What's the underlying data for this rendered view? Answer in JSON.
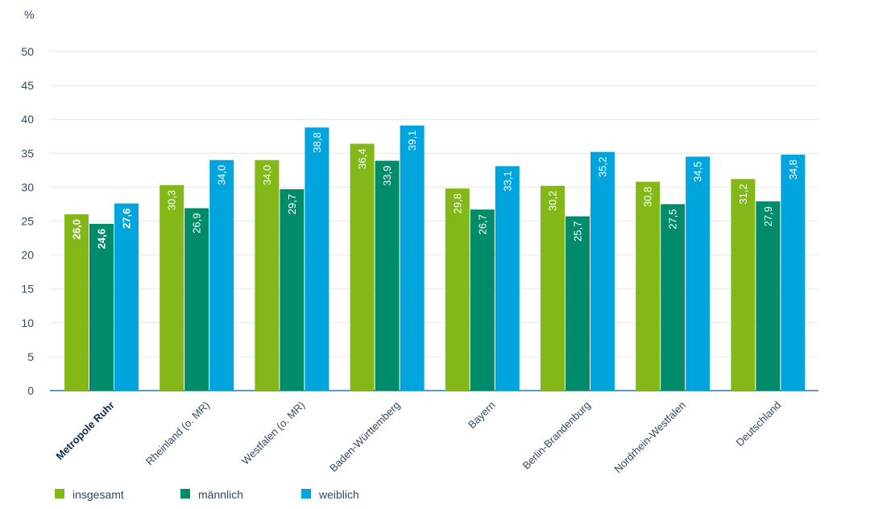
{
  "chart_data": {
    "type": "bar",
    "unit_label": "%",
    "categories": [
      "Metropole Ruhr",
      "Rheinland (o. MR)",
      "Westfalen (o. MR)",
      "Baden-Württemberg",
      "Bayern",
      "Berlin-Brandenburg",
      "Nordrhein-Westfalen",
      "Deutschland"
    ],
    "highlight_category": "Metropole Ruhr",
    "series": [
      {
        "name": "insgesamt",
        "color": "#84b819",
        "values": [
          26.0,
          30.3,
          34.0,
          36.4,
          29.8,
          30.2,
          30.8,
          31.2
        ],
        "labels": [
          "26,0",
          "30,3",
          "34,0",
          "36,4",
          "29,8",
          "30,2",
          "30,8",
          "31,2"
        ]
      },
      {
        "name": "männlich",
        "color": "#008c6a",
        "values": [
          24.6,
          26.9,
          29.7,
          33.9,
          26.7,
          25.7,
          27.5,
          27.9
        ],
        "labels": [
          "24,6",
          "26,9",
          "29,7",
          "33,9",
          "26,7",
          "25,7",
          "27,5",
          "27,9"
        ]
      },
      {
        "name": "weiblich",
        "color": "#00a5dd",
        "values": [
          27.6,
          34.0,
          38.8,
          39.1,
          33.1,
          35.2,
          34.5,
          34.8
        ],
        "labels": [
          "27,6",
          "34,0",
          "38,8",
          "39,1",
          "33,1",
          "35,2",
          "34,5",
          "34,8"
        ]
      }
    ],
    "y_ticks": [
      "0",
      "5",
      "10",
      "15",
      "20",
      "25",
      "30",
      "35",
      "40",
      "45",
      "50"
    ],
    "ylim": [
      0,
      50
    ],
    "grid": true,
    "legend_position": "bottom-left",
    "axis_color": "#2a7ab8",
    "grid_color": "#e6e6e6"
  }
}
